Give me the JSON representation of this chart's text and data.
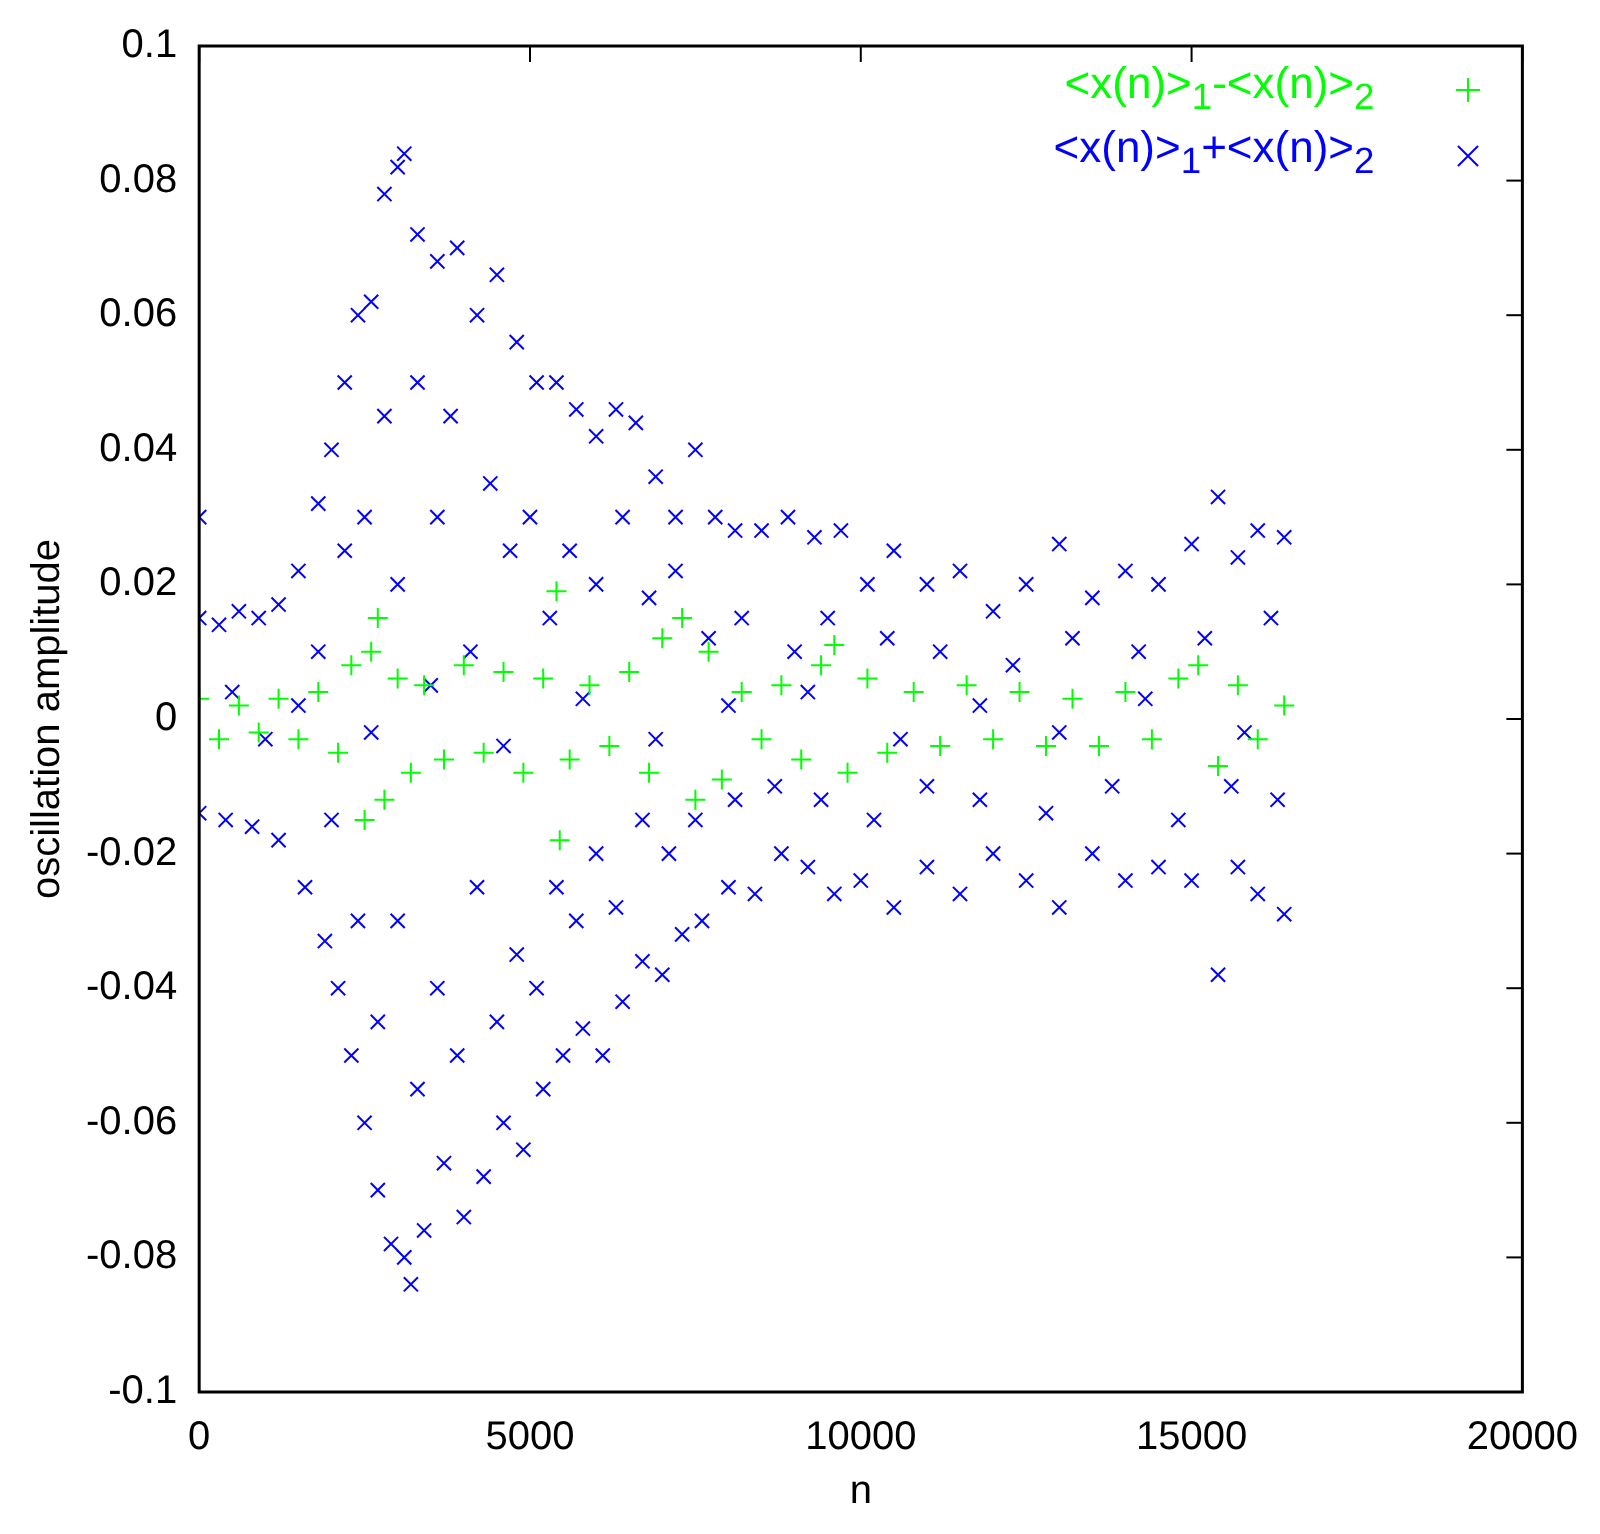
{
  "chart_data": {
    "type": "scatter",
    "xlabel": "n",
    "ylabel": "oscillation amplitude",
    "xlim": [
      0,
      20000
    ],
    "xticks": [
      0,
      5000,
      10000,
      15000,
      20000
    ],
    "ylim": [
      -0.1,
      0.1
    ],
    "yticks": [
      -0.1,
      -0.08,
      -0.06,
      -0.04,
      -0.02,
      0,
      0.02,
      0.04,
      0.06,
      0.08,
      0.1
    ],
    "grid": false,
    "legend": "top right",
    "marker": "cross",
    "series": [
      {
        "name": "<x(n)>$_{1}$-<x(n)>$_{2}$",
        "color": "#00ff00",
        "x": [
          0,
          300,
          600,
          900,
          1200,
          1500,
          1800,
          2100,
          2300,
          2500,
          2600,
          2700,
          2800,
          3000,
          3200,
          3400,
          3700,
          4000,
          4300,
          4600,
          4900,
          5200,
          5400,
          5450,
          5600,
          5900,
          6200,
          6500,
          6800,
          7000,
          7300,
          7500,
          7700,
          7900,
          8200,
          8500,
          8800,
          9100,
          9400,
          9600,
          9800,
          10100,
          10400,
          10800,
          11200,
          11600,
          12000,
          12400,
          12800,
          13200,
          13600,
          14000,
          14400,
          14800,
          15100,
          15400,
          15700,
          16000,
          16400
        ],
        "values": [
          0.003,
          -0.003,
          0.002,
          -0.002,
          0.003,
          -0.003,
          0.004,
          -0.005,
          0.008,
          -0.015,
          0.01,
          0.015,
          -0.012,
          0.006,
          -0.008,
          0.005,
          -0.006,
          0.008,
          -0.005,
          0.007,
          -0.008,
          0.006,
          0.019,
          -0.018,
          -0.006,
          0.005,
          -0.004,
          0.007,
          -0.008,
          0.012,
          0.015,
          -0.012,
          0.01,
          -0.009,
          0.004,
          -0.003,
          0.005,
          -0.006,
          0.008,
          0.011,
          -0.008,
          0.006,
          -0.005,
          0.004,
          -0.004,
          0.005,
          -0.003,
          0.004,
          -0.004,
          0.003,
          -0.004,
          0.004,
          -0.003,
          0.006,
          0.008,
          -0.007,
          0.005,
          -0.003,
          0.002
        ]
      },
      {
        "name": "<x(n)>$_{1}$+<x(n)>$_{2}$",
        "color": "#0000ff",
        "x": [
          0,
          0,
          300,
          600,
          900,
          1200,
          1500,
          1800,
          2000,
          2200,
          2400,
          2600,
          2800,
          3000,
          3100,
          3300,
          3600,
          3900,
          4200,
          4500,
          4800,
          5100,
          5400,
          5700,
          6000,
          6300,
          6600,
          6900,
          7200,
          7500,
          7800,
          8100,
          8500,
          8900,
          9300,
          9700,
          10100,
          10500,
          11000,
          11500,
          12000,
          12500,
          13000,
          13500,
          14000,
          14500,
          15000,
          15400,
          15700,
          16000,
          16400,
          0,
          400,
          800,
          1200,
          1600,
          1900,
          2100,
          2300,
          2500,
          2700,
          2900,
          3100,
          3200,
          3400,
          3700,
          4000,
          4300,
          4600,
          4900,
          5200,
          5500,
          5800,
          6100,
          6400,
          6700,
          7000,
          7300,
          7600,
          8000,
          8400,
          8800,
          9200,
          9600,
          10000,
          10500,
          11000,
          11500,
          12000,
          12500,
          13000,
          13500,
          14000,
          14500,
          15000,
          15400,
          15700,
          16000,
          16400,
          1800,
          2200,
          2500,
          2800,
          3000,
          3300,
          3600,
          3800,
          4100,
          4400,
          4700,
          5000,
          5300,
          5600,
          6000,
          6400,
          6800,
          7200,
          7700,
          8200,
          9000,
          9500,
          10400,
          11200,
          12300,
          13200,
          14200,
          15200,
          16200,
          2000,
          2400,
          2700,
          3000,
          3300,
          3600,
          3900,
          4200,
          4500,
          4800,
          5100,
          5400,
          5700,
          6000,
          6300,
          6700,
          7100,
          7500,
          8100,
          8700,
          9400,
          10200,
          11000,
          11800,
          12800,
          13800,
          14800,
          15600,
          16300,
          500,
          1000,
          1500,
          2600,
          3500,
          4600,
          5800,
          6900,
          8000,
          9200,
          10600,
          11800,
          13000,
          14300,
          15800
        ],
        "values": [
          0.03,
          0.015,
          0.014,
          0.016,
          0.015,
          0.017,
          0.022,
          0.032,
          0.04,
          0.05,
          0.06,
          0.062,
          0.078,
          0.082,
          0.084,
          0.072,
          0.068,
          0.07,
          0.06,
          0.066,
          0.056,
          0.05,
          0.05,
          0.046,
          0.042,
          0.046,
          0.044,
          0.036,
          0.03,
          0.04,
          0.03,
          0.028,
          0.028,
          0.03,
          0.027,
          0.028,
          0.02,
          0.025,
          0.02,
          0.022,
          0.016,
          0.02,
          0.026,
          0.018,
          0.022,
          0.02,
          0.026,
          0.033,
          0.024,
          0.028,
          0.027,
          -0.014,
          -0.015,
          -0.016,
          -0.018,
          -0.025,
          -0.033,
          -0.04,
          -0.05,
          -0.06,
          -0.07,
          -0.078,
          -0.08,
          -0.084,
          -0.076,
          -0.066,
          -0.074,
          -0.068,
          -0.06,
          -0.064,
          -0.055,
          -0.05,
          -0.046,
          -0.05,
          -0.042,
          -0.036,
          -0.038,
          -0.032,
          -0.03,
          -0.025,
          -0.026,
          -0.02,
          -0.022,
          -0.026,
          -0.024,
          -0.028,
          -0.022,
          -0.026,
          -0.02,
          -0.024,
          -0.028,
          -0.02,
          -0.024,
          -0.022,
          -0.024,
          -0.038,
          -0.022,
          -0.026,
          -0.029,
          0.01,
          0.025,
          0.03,
          0.045,
          0.02,
          0.05,
          0.03,
          0.045,
          0.01,
          0.035,
          0.025,
          0.03,
          0.015,
          0.025,
          0.02,
          0.03,
          0.018,
          0.022,
          0.012,
          0.015,
          0.01,
          0.015,
          0.012,
          0.01,
          0.008,
          0.012,
          0.01,
          0.012,
          0.015,
          -0.015,
          -0.03,
          -0.045,
          -0.03,
          -0.055,
          -0.04,
          -0.05,
          -0.025,
          -0.045,
          -0.035,
          -0.04,
          -0.025,
          -0.03,
          -0.02,
          -0.028,
          -0.015,
          -0.02,
          -0.015,
          -0.012,
          -0.01,
          -0.012,
          -0.015,
          -0.01,
          -0.012,
          -0.014,
          -0.01,
          -0.015,
          -0.01,
          -0.012,
          0.004,
          -0.003,
          0.002,
          -0.002,
          0.005,
          -0.004,
          0.003,
          -0.003,
          0.002,
          0.004,
          -0.003,
          0.002,
          -0.002,
          0.003,
          -0.002
        ]
      }
    ]
  }
}
